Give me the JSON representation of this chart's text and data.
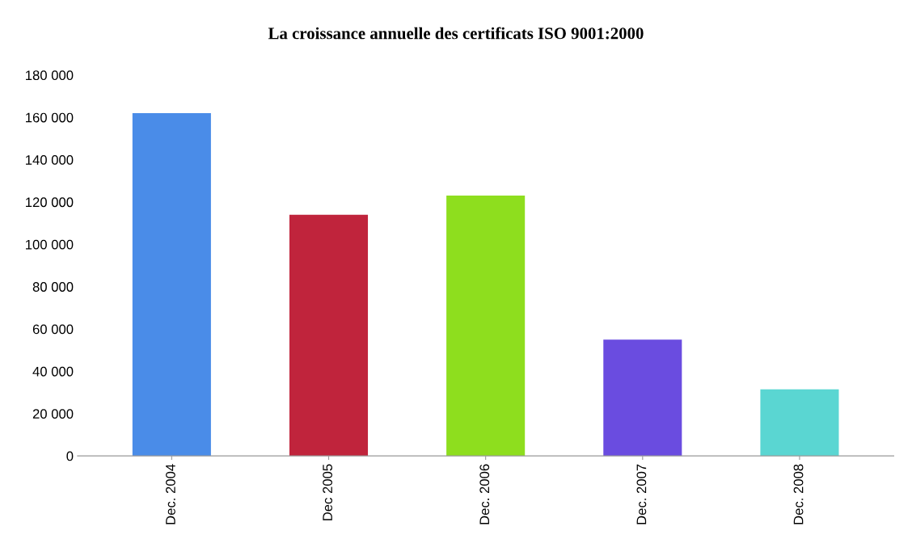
{
  "chart_data": {
    "type": "bar",
    "title": "La croissance annuelle des certificats ISO 9001:2000",
    "categories": [
      "Dec. 2004",
      "Dec 2005",
      "Dec. 2006",
      "Dec. 2007",
      "Dec. 2008"
    ],
    "values": [
      162000,
      114000,
      123000,
      55000,
      31500
    ],
    "colors": [
      "#4a8ce8",
      "#c0243c",
      "#8ede1e",
      "#6a4ce0",
      "#5ad6d2"
    ],
    "ylim": [
      0,
      180000
    ],
    "yticks": [
      {
        "value": 0,
        "label": "0"
      },
      {
        "value": 20000,
        "label": "20 000"
      },
      {
        "value": 40000,
        "label": "40 000"
      },
      {
        "value": 60000,
        "label": "60 000"
      },
      {
        "value": 80000,
        "label": "80 000"
      },
      {
        "value": 100000,
        "label": "100 000"
      },
      {
        "value": 120000,
        "label": "120 000"
      },
      {
        "value": 140000,
        "label": "140 000"
      },
      {
        "value": 160000,
        "label": "160 000"
      },
      {
        "value": 180000,
        "label": "180 000"
      }
    ],
    "grid": false,
    "legend": false
  }
}
